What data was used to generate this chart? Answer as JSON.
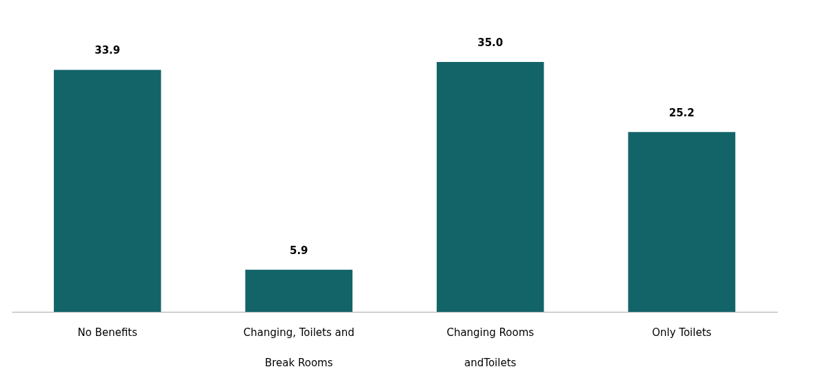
{
  "chart_data": {
    "type": "bar",
    "categories": [
      "No Benefits",
      "Changing, Toilets and Break Rooms",
      "Changing Rooms andToilets",
      "Only Toilets"
    ],
    "values": [
      33.9,
      5.9,
      35.0,
      25.2
    ],
    "value_labels": [
      "33.9",
      "5.9",
      "35.0",
      "25.2"
    ],
    "color": "#136469",
    "grid": false
  }
}
